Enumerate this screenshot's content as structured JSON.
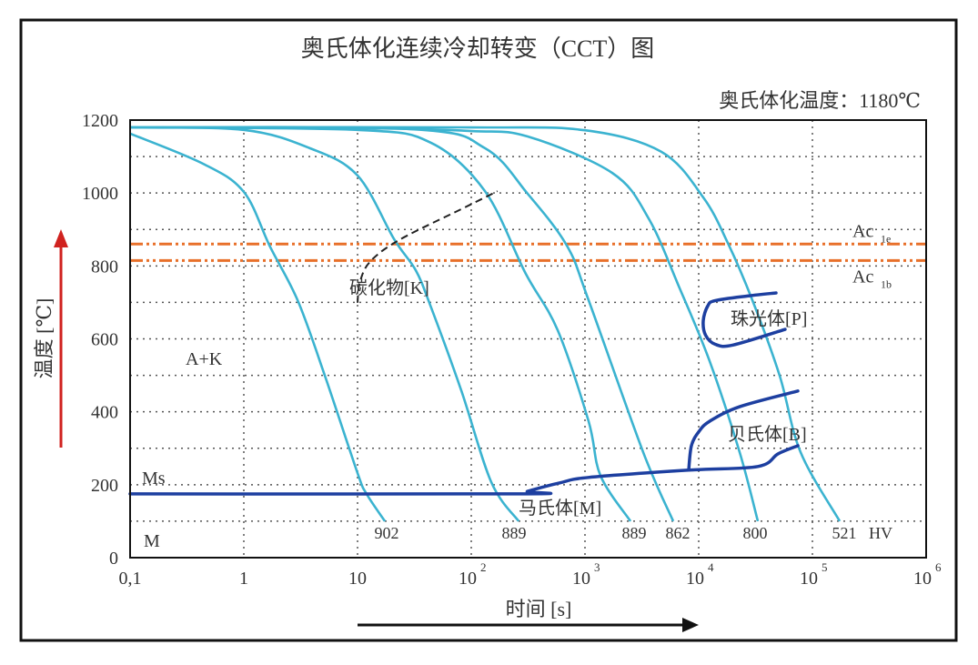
{
  "chart_data": {
    "type": "line",
    "title": "奥氏体化连续冷却转变（CCT）图",
    "subtitle": "奥氏体化温度：1180℃",
    "xlabel": "时间 [s]",
    "ylabel": "温度 [℃]",
    "x_scale": "log",
    "xlim": [
      0.1,
      1000000
    ],
    "ylim": [
      0,
      1200
    ],
    "grid": true,
    "x_ticks": [
      {
        "base": "0,1",
        "exp": ""
      },
      {
        "base": "1",
        "exp": ""
      },
      {
        "base": "10",
        "exp": ""
      },
      {
        "base": "10",
        "exp": "2"
      },
      {
        "base": "10",
        "exp": "3"
      },
      {
        "base": "10",
        "exp": "4"
      },
      {
        "base": "10",
        "exp": "5"
      },
      {
        "base": "10",
        "exp": "6"
      }
    ],
    "y_ticks": [
      "0",
      "200",
      "400",
      "600",
      "800",
      "1000",
      "1200"
    ],
    "colors": {
      "cooling": "#3bb3d0",
      "transformation": "#1d3fa0",
      "ac_lines": "#e8702a",
      "carbide": "#222222",
      "y_arrow": "#d0221f",
      "x_arrow": "#111111"
    },
    "cooling_curves": [
      {
        "hardness": "902",
        "points": [
          [
            0.1,
            1163
          ],
          [
            0.44,
            1080
          ],
          [
            1,
            1003
          ],
          [
            1.7,
            853
          ],
          [
            3,
            703
          ],
          [
            5.2,
            496
          ],
          [
            10,
            232
          ],
          [
            12,
            175
          ],
          [
            17.4,
            100
          ]
        ]
      },
      {
        "hardness": "889",
        "points": [
          [
            0.1,
            1180
          ],
          [
            1,
            1173
          ],
          [
            3.8,
            1123
          ],
          [
            10,
            1048
          ],
          [
            21,
            873
          ],
          [
            32.5,
            788
          ],
          [
            44,
            689
          ],
          [
            82,
            457
          ],
          [
            150,
            207
          ],
          [
            261,
            100
          ]
        ]
      },
      {
        "hardness": "889",
        "points": [
          [
            0.1,
            1180
          ],
          [
            10,
            1173
          ],
          [
            44,
            1138
          ],
          [
            132,
            1005
          ],
          [
            300,
            780
          ],
          [
            575,
            624
          ],
          [
            1076,
            374
          ],
          [
            1368,
            225
          ],
          [
            2512,
            100
          ]
        ]
      },
      {
        "hardness": "862",
        "points": [
          [
            0.1,
            1180
          ],
          [
            30,
            1175
          ],
          [
            132,
            1123
          ],
          [
            313,
            998
          ],
          [
            692,
            856
          ],
          [
            1076,
            706
          ],
          [
            3251,
            289
          ],
          [
            5970,
            100
          ]
        ]
      },
      {
        "hardness": "800",
        "points": [
          [
            0.1,
            1180
          ],
          [
            10,
            1178
          ],
          [
            100,
            1170
          ],
          [
            313,
            1155
          ],
          [
            1738,
            1055
          ],
          [
            3631,
            930
          ],
          [
            6792,
            739
          ],
          [
            12474,
            539
          ],
          [
            22909,
            289
          ],
          [
            33113,
            100
          ]
        ]
      },
      {
        "hardness": "521",
        "points": [
          [
            0.1,
            1180
          ],
          [
            100,
            1180
          ],
          [
            1000,
            1172
          ],
          [
            4699,
            1113
          ],
          [
            10965,
            988
          ],
          [
            18030,
            863
          ],
          [
            29648,
            706
          ],
          [
            51523,
            499
          ],
          [
            78705,
            289
          ],
          [
            173780,
            100
          ]
        ]
      }
    ],
    "hardness_unit": "HV",
    "ac_lines": [
      {
        "name": "Ac",
        "sub": "1e",
        "value": 860
      },
      {
        "name": "Ac",
        "sub": "1b",
        "value": 815
      }
    ],
    "carbide_line": [
      [
        10,
        699
      ],
      [
        10.5,
        756
      ],
      [
        13,
        813
      ],
      [
        23.8,
        873
      ],
      [
        82,
        956
      ],
      [
        170,
        1005
      ]
    ],
    "ms_line": [
      [
        0.1,
        175
      ],
      [
        275,
        175
      ],
      [
        313,
        182
      ],
      [
        600,
        205
      ],
      [
        1076,
        220
      ],
      [
        8166,
        240
      ],
      [
        33113,
        250
      ],
      [
        50000,
        285
      ],
      [
        74473,
        307
      ]
    ],
    "bainite_line": [
      [
        8166,
        240
      ],
      [
        8630,
        307
      ],
      [
        10000,
        345
      ],
      [
        12474,
        374
      ],
      [
        22909,
        414
      ],
      [
        74473,
        457
      ]
    ],
    "pearlite_line": [
      [
        47863,
        726
      ],
      [
        27542,
        718
      ],
      [
        14000,
        705
      ],
      [
        12000,
        690
      ],
      [
        10965,
        650
      ],
      [
        11500,
        610
      ],
      [
        14000,
        585
      ],
      [
        20000,
        583
      ],
      [
        57544,
        626
      ]
    ],
    "regions": {
      "carbide": "碳化物[K]",
      "pearlite": "珠光体[P]",
      "bainite": "贝氏体[B]",
      "martensite": "马氏体[M]",
      "austenite_carbide": "A+K",
      "ms": "Ms",
      "m": "M"
    }
  }
}
